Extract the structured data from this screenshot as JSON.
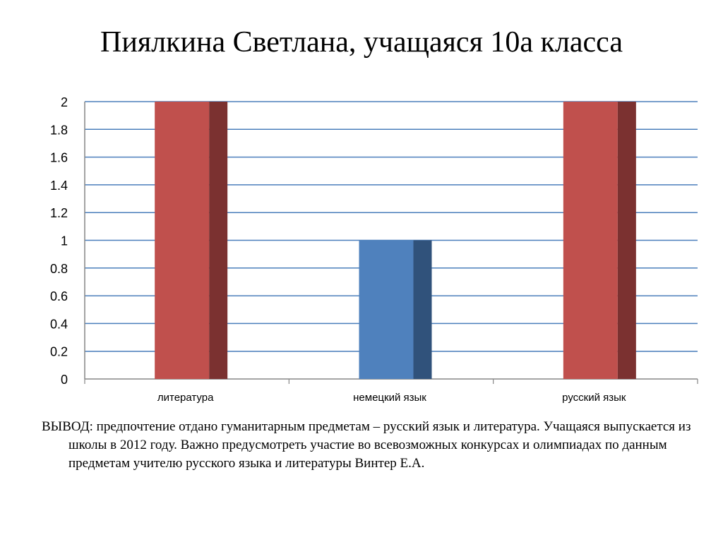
{
  "title": "Пиялкина Светлана, учащаяся 10а класса",
  "chart_data": {
    "type": "bar",
    "categories": [
      "литература",
      "немецкий язык",
      "русский язык"
    ],
    "values": [
      2,
      1,
      2
    ],
    "bar_colors": [
      "#c0504d",
      "#4f81bd",
      "#c0504d"
    ],
    "bar_side_colors": [
      "#7b3130",
      "#30527b",
      "#7b3130"
    ],
    "ylim": [
      0,
      2
    ],
    "yticks": [
      "0",
      "0.2",
      "0.4",
      "0.6",
      "0.8",
      "1",
      "1.2",
      "1.4",
      "1.6",
      "1.8",
      "2"
    ],
    "grid": true,
    "grid_color": "#4a7ebb",
    "legend": false,
    "title": "",
    "xlabel": "",
    "ylabel": ""
  },
  "conclusion": "ВЫВОД: предпочтение отдано гуманитарным предметам – русский язык и  литература. Учащаяся выпускается из школы в 2012 году. Важно предусмотреть участие во всевозможных конкурсах и олимпиадах по данным предметам учителю русского языка  и литературы  Винтер Е.А."
}
